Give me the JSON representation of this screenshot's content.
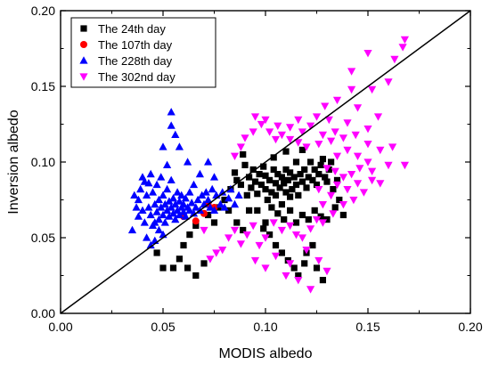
{
  "chart_data": {
    "type": "scatter",
    "xlabel": "MODIS albedo",
    "ylabel": "Inversion albedo",
    "xlim": [
      0.0,
      0.2
    ],
    "ylim": [
      0.0,
      0.2
    ],
    "xticks": [
      "0.00",
      "0.05",
      "0.10",
      "0.15",
      "0.20"
    ],
    "yticks": [
      "0.00",
      "0.05",
      "0.10",
      "0.15",
      "0.20"
    ],
    "grid": false,
    "legend_position": "top-left",
    "reference_line": "1:1",
    "series": [
      {
        "name": "The 24th day",
        "marker": "square",
        "color": "#000000",
        "points": [
          [
            0.047,
            0.04
          ],
          [
            0.05,
            0.03
          ],
          [
            0.055,
            0.03
          ],
          [
            0.058,
            0.036
          ],
          [
            0.06,
            0.045
          ],
          [
            0.062,
            0.03
          ],
          [
            0.066,
            0.025
          ],
          [
            0.07,
            0.033
          ],
          [
            0.063,
            0.052
          ],
          [
            0.066,
            0.058
          ],
          [
            0.072,
            0.065
          ],
          [
            0.075,
            0.06
          ],
          [
            0.077,
            0.07
          ],
          [
            0.08,
            0.075
          ],
          [
            0.082,
            0.068
          ],
          [
            0.083,
            0.082
          ],
          [
            0.085,
            0.093
          ],
          [
            0.086,
            0.088
          ],
          [
            0.088,
            0.085
          ],
          [
            0.089,
            0.105
          ],
          [
            0.09,
            0.098
          ],
          [
            0.091,
            0.078
          ],
          [
            0.092,
            0.09
          ],
          [
            0.093,
            0.083
          ],
          [
            0.094,
            0.095
          ],
          [
            0.095,
            0.087
          ],
          [
            0.096,
            0.079
          ],
          [
            0.097,
            0.092
          ],
          [
            0.098,
            0.085
          ],
          [
            0.099,
            0.097
          ],
          [
            0.1,
            0.082
          ],
          [
            0.1,
            0.091
          ],
          [
            0.101,
            0.075
          ],
          [
            0.102,
            0.088
          ],
          [
            0.103,
            0.08
          ],
          [
            0.104,
            0.095
          ],
          [
            0.105,
            0.086
          ],
          [
            0.105,
            0.078
          ],
          [
            0.106,
            0.092
          ],
          [
            0.107,
            0.083
          ],
          [
            0.108,
            0.09
          ],
          [
            0.108,
            0.072
          ],
          [
            0.109,
            0.086
          ],
          [
            0.11,
            0.08
          ],
          [
            0.11,
            0.095
          ],
          [
            0.111,
            0.088
          ],
          [
            0.112,
            0.077
          ],
          [
            0.112,
            0.093
          ],
          [
            0.113,
            0.082
          ],
          [
            0.114,
            0.09
          ],
          [
            0.115,
            0.085
          ],
          [
            0.115,
            0.1
          ],
          [
            0.116,
            0.078
          ],
          [
            0.117,
            0.092
          ],
          [
            0.118,
            0.087
          ],
          [
            0.119,
            0.095
          ],
          [
            0.12,
            0.083
          ],
          [
            0.121,
            0.09
          ],
          [
            0.122,
            0.1
          ],
          [
            0.123,
            0.088
          ],
          [
            0.124,
            0.095
          ],
          [
            0.125,
            0.085
          ],
          [
            0.126,
            0.092
          ],
          [
            0.127,
            0.098
          ],
          [
            0.128,
            0.102
          ],
          [
            0.129,
            0.09
          ],
          [
            0.13,
            0.087
          ],
          [
            0.131,
            0.095
          ],
          [
            0.132,
            0.1
          ],
          [
            0.118,
            0.108
          ],
          [
            0.11,
            0.107
          ],
          [
            0.104,
            0.103
          ],
          [
            0.096,
            0.068
          ],
          [
            0.1,
            0.06
          ],
          [
            0.103,
            0.07
          ],
          [
            0.106,
            0.066
          ],
          [
            0.109,
            0.062
          ],
          [
            0.112,
            0.068
          ],
          [
            0.115,
            0.06
          ],
          [
            0.118,
            0.065
          ],
          [
            0.121,
            0.062
          ],
          [
            0.124,
            0.068
          ],
          [
            0.127,
            0.064
          ],
          [
            0.13,
            0.062
          ],
          [
            0.099,
            0.056
          ],
          [
            0.102,
            0.052
          ],
          [
            0.105,
            0.045
          ],
          [
            0.108,
            0.04
          ],
          [
            0.111,
            0.035
          ],
          [
            0.114,
            0.03
          ],
          [
            0.116,
            0.025
          ],
          [
            0.119,
            0.033
          ],
          [
            0.12,
            0.04
          ],
          [
            0.123,
            0.045
          ],
          [
            0.125,
            0.03
          ],
          [
            0.128,
            0.022
          ],
          [
            0.134,
            0.07
          ],
          [
            0.136,
            0.075
          ],
          [
            0.138,
            0.065
          ],
          [
            0.133,
            0.082
          ],
          [
            0.135,
            0.088
          ],
          [
            0.086,
            0.06
          ],
          [
            0.089,
            0.055
          ],
          [
            0.092,
            0.068
          ]
        ]
      },
      {
        "name": "The 107th day",
        "marker": "circle",
        "color": "#ff0000",
        "points": [
          [
            0.07,
            0.066
          ],
          [
            0.06,
            0.064
          ],
          [
            0.066,
            0.061
          ],
          [
            0.075,
            0.07
          ],
          [
            0.072,
            0.072
          ]
        ]
      },
      {
        "name": "The 228th day",
        "marker": "triangle-up",
        "color": "#0000ff",
        "points": [
          [
            0.035,
            0.055
          ],
          [
            0.038,
            0.075
          ],
          [
            0.04,
            0.068
          ],
          [
            0.041,
            0.06
          ],
          [
            0.042,
            0.078
          ],
          [
            0.043,
            0.07
          ],
          [
            0.044,
            0.065
          ],
          [
            0.045,
            0.08
          ],
          [
            0.045,
            0.058
          ],
          [
            0.046,
            0.072
          ],
          [
            0.047,
            0.067
          ],
          [
            0.047,
            0.085
          ],
          [
            0.048,
            0.062
          ],
          [
            0.048,
            0.075
          ],
          [
            0.049,
            0.07
          ],
          [
            0.049,
            0.09
          ],
          [
            0.05,
            0.065
          ],
          [
            0.05,
            0.078
          ],
          [
            0.051,
            0.072
          ],
          [
            0.051,
            0.06
          ],
          [
            0.052,
            0.068
          ],
          [
            0.052,
            0.082
          ],
          [
            0.053,
            0.074
          ],
          [
            0.053,
            0.064
          ],
          [
            0.054,
            0.07
          ],
          [
            0.054,
            0.088
          ],
          [
            0.055,
            0.066
          ],
          [
            0.055,
            0.076
          ],
          [
            0.056,
            0.072
          ],
          [
            0.056,
            0.062
          ],
          [
            0.057,
            0.068
          ],
          [
            0.057,
            0.08
          ],
          [
            0.058,
            0.074
          ],
          [
            0.058,
            0.065
          ],
          [
            0.059,
            0.07
          ],
          [
            0.059,
            0.078
          ],
          [
            0.06,
            0.067
          ],
          [
            0.06,
            0.072
          ],
          [
            0.061,
            0.064
          ],
          [
            0.061,
            0.076
          ],
          [
            0.062,
            0.07
          ],
          [
            0.063,
            0.068
          ],
          [
            0.063,
            0.08
          ],
          [
            0.064,
            0.073
          ],
          [
            0.065,
            0.066
          ],
          [
            0.065,
            0.085
          ],
          [
            0.066,
            0.07
          ],
          [
            0.067,
            0.075
          ],
          [
            0.068,
            0.068
          ],
          [
            0.069,
            0.078
          ],
          [
            0.07,
            0.072
          ],
          [
            0.071,
            0.08
          ],
          [
            0.072,
            0.075
          ],
          [
            0.073,
            0.07
          ],
          [
            0.074,
            0.082
          ],
          [
            0.075,
            0.068
          ],
          [
            0.076,
            0.078
          ],
          [
            0.078,
            0.072
          ],
          [
            0.079,
            0.08
          ],
          [
            0.08,
            0.07
          ],
          [
            0.082,
            0.076
          ],
          [
            0.083,
            0.082
          ],
          [
            0.085,
            0.072
          ],
          [
            0.087,
            0.078
          ],
          [
            0.054,
            0.133
          ],
          [
            0.054,
            0.124
          ],
          [
            0.056,
            0.118
          ],
          [
            0.05,
            0.11
          ],
          [
            0.058,
            0.11
          ],
          [
            0.052,
            0.098
          ],
          [
            0.062,
            0.1
          ],
          [
            0.068,
            0.092
          ],
          [
            0.072,
            0.1
          ],
          [
            0.075,
            0.09
          ],
          [
            0.04,
            0.09
          ],
          [
            0.043,
            0.086
          ],
          [
            0.038,
            0.064
          ],
          [
            0.042,
            0.05
          ],
          [
            0.044,
            0.045
          ],
          [
            0.046,
            0.048
          ],
          [
            0.036,
            0.078
          ],
          [
            0.037,
            0.07
          ],
          [
            0.039,
            0.082
          ],
          [
            0.041,
            0.087
          ],
          [
            0.044,
            0.092
          ],
          [
            0.046,
            0.06
          ],
          [
            0.048,
            0.055
          ],
          [
            0.05,
            0.052
          ]
        ]
      },
      {
        "name": "The 302nd day",
        "marker": "triangle-down",
        "color": "#ff00ff",
        "points": [
          [
            0.168,
            0.181
          ],
          [
            0.167,
            0.176
          ],
          [
            0.163,
            0.168
          ],
          [
            0.15,
            0.172
          ],
          [
            0.142,
            0.16
          ],
          [
            0.152,
            0.148
          ],
          [
            0.16,
            0.153
          ],
          [
            0.142,
            0.148
          ],
          [
            0.135,
            0.141
          ],
          [
            0.129,
            0.137
          ],
          [
            0.125,
            0.13
          ],
          [
            0.131,
            0.128
          ],
          [
            0.145,
            0.136
          ],
          [
            0.155,
            0.13
          ],
          [
            0.14,
            0.126
          ],
          [
            0.15,
            0.122
          ],
          [
            0.122,
            0.124
          ],
          [
            0.118,
            0.12
          ],
          [
            0.112,
            0.123
          ],
          [
            0.108,
            0.118
          ],
          [
            0.105,
            0.115
          ],
          [
            0.102,
            0.12
          ],
          [
            0.098,
            0.125
          ],
          [
            0.094,
            0.12
          ],
          [
            0.09,
            0.116
          ],
          [
            0.088,
            0.11
          ],
          [
            0.085,
            0.104
          ],
          [
            0.095,
            0.13
          ],
          [
            0.1,
            0.128
          ],
          [
            0.106,
            0.124
          ],
          [
            0.112,
            0.115
          ],
          [
            0.116,
            0.113
          ],
          [
            0.12,
            0.11
          ],
          [
            0.126,
            0.112
          ],
          [
            0.132,
            0.114
          ],
          [
            0.138,
            0.116
          ],
          [
            0.144,
            0.118
          ],
          [
            0.15,
            0.112
          ],
          [
            0.156,
            0.108
          ],
          [
            0.162,
            0.11
          ],
          [
            0.168,
            0.098
          ],
          [
            0.16,
            0.098
          ],
          [
            0.15,
            0.1
          ],
          [
            0.146,
            0.096
          ],
          [
            0.142,
            0.092
          ],
          [
            0.138,
            0.09
          ],
          [
            0.134,
            0.094
          ],
          [
            0.13,
            0.096
          ],
          [
            0.135,
            0.085
          ],
          [
            0.14,
            0.082
          ],
          [
            0.145,
            0.086
          ],
          [
            0.148,
            0.08
          ],
          [
            0.152,
            0.088
          ],
          [
            0.143,
            0.075
          ],
          [
            0.138,
            0.072
          ],
          [
            0.133,
            0.066
          ],
          [
            0.128,
            0.06
          ],
          [
            0.125,
            0.062
          ],
          [
            0.122,
            0.056
          ],
          [
            0.118,
            0.05
          ],
          [
            0.115,
            0.052
          ],
          [
            0.112,
            0.058
          ],
          [
            0.108,
            0.055
          ],
          [
            0.104,
            0.06
          ],
          [
            0.1,
            0.05
          ],
          [
            0.097,
            0.045
          ],
          [
            0.094,
            0.058
          ],
          [
            0.091,
            0.052
          ],
          [
            0.088,
            0.046
          ],
          [
            0.085,
            0.055
          ],
          [
            0.082,
            0.05
          ],
          [
            0.079,
            0.042
          ],
          [
            0.076,
            0.04
          ],
          [
            0.073,
            0.036
          ],
          [
            0.07,
            0.055
          ],
          [
            0.095,
            0.035
          ],
          [
            0.1,
            0.03
          ],
          [
            0.105,
            0.038
          ],
          [
            0.11,
            0.025
          ],
          [
            0.112,
            0.033
          ],
          [
            0.12,
            0.042
          ],
          [
            0.126,
            0.035
          ],
          [
            0.13,
            0.028
          ],
          [
            0.122,
            0.016
          ],
          [
            0.116,
            0.022
          ],
          [
            0.128,
            0.072
          ],
          [
            0.132,
            0.078
          ],
          [
            0.126,
            0.082
          ],
          [
            0.145,
            0.104
          ],
          [
            0.152,
            0.094
          ],
          [
            0.156,
            0.086
          ],
          [
            0.135,
            0.104
          ],
          [
            0.14,
            0.108
          ],
          [
            0.128,
            0.118
          ],
          [
            0.134,
            0.12
          ],
          [
            0.116,
            0.128
          ]
        ]
      }
    ]
  }
}
